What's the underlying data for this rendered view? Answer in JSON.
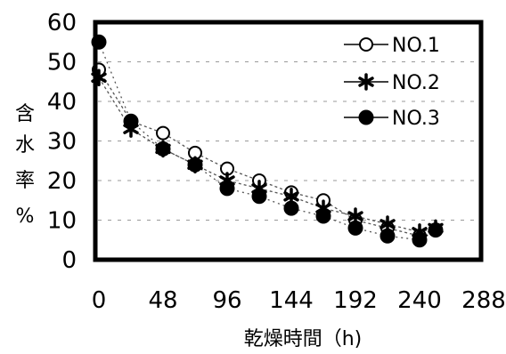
{
  "chart_data": {
    "type": "line",
    "title": "",
    "xlabel": "乾燥時間（h)",
    "ylabel": "含水率%",
    "ylabel_chars": [
      "含",
      "水",
      "率",
      "%"
    ],
    "xlim": [
      0,
      258
    ],
    "ylim": [
      0,
      60
    ],
    "x_ticks": [
      "0",
      "48",
      "96",
      "144",
      "192",
      "240",
      "288"
    ],
    "y_ticks": [
      "0",
      "10",
      "20",
      "30",
      "40",
      "50",
      "60"
    ],
    "grid": "dashed-horizontal",
    "legend_position": "top-right",
    "series": [
      {
        "name": "NO.1",
        "marker": "open-circle",
        "x": [
          0,
          24,
          48,
          72,
          96,
          120,
          144,
          168,
          192,
          216,
          240
        ],
        "values": [
          48,
          35,
          32,
          27,
          23,
          20,
          17,
          15,
          10,
          8,
          6
        ]
      },
      {
        "name": "NO.2",
        "marker": "asterisk",
        "x": [
          0,
          24,
          48,
          72,
          96,
          120,
          144,
          168,
          192,
          216,
          240,
          252
        ],
        "values": [
          46,
          33,
          28,
          24,
          20,
          18,
          16,
          13,
          11,
          9,
          7,
          8
        ]
      },
      {
        "name": "NO.3",
        "marker": "filled-circle",
        "x": [
          0,
          24,
          48,
          72,
          96,
          120,
          144,
          168,
          192,
          216,
          240,
          252
        ],
        "values": [
          55,
          35,
          28,
          24,
          18,
          16,
          13,
          11,
          8,
          6,
          5,
          7.5
        ]
      }
    ]
  }
}
